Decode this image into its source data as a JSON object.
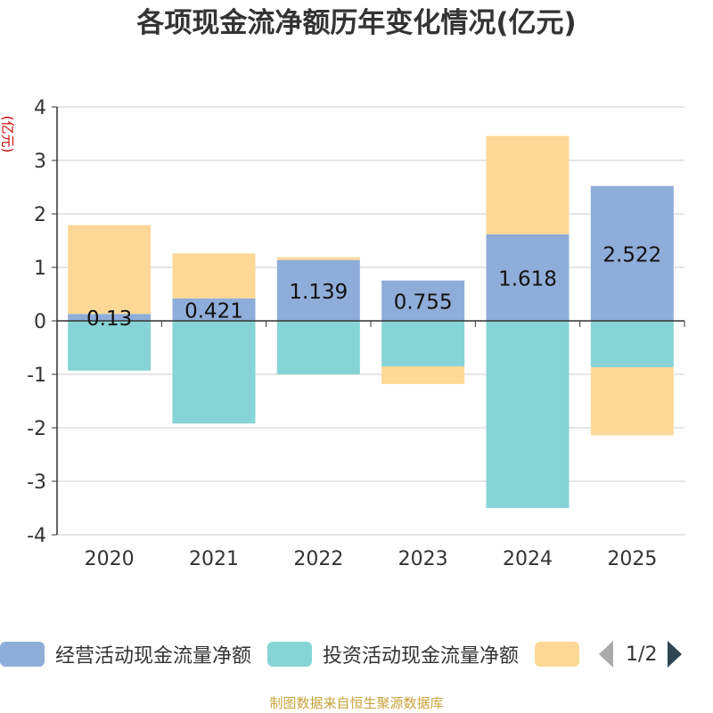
{
  "chart_data": {
    "type": "bar",
    "stacked": true,
    "title": "各项现金流净额历年变化情况(亿元)",
    "ylabel": "(亿元)",
    "ylim": [
      -4,
      4
    ],
    "yticks": [
      4,
      3,
      2,
      1,
      0,
      -1,
      -2,
      -3,
      -4
    ],
    "categories": [
      "2020",
      "2021",
      "2022",
      "2023",
      "2024",
      "2025"
    ],
    "series": [
      {
        "name": "经营活动现金流量净额",
        "color": "#8fadd9",
        "values": [
          0.13,
          0.421,
          1.139,
          0.755,
          1.618,
          2.522
        ],
        "labels": [
          "0.13",
          "0.421",
          "1.139",
          "0.755",
          "1.618",
          "2.522"
        ]
      },
      {
        "name": "投资活动现金流量净额",
        "color": "#86d4d6",
        "values": [
          -0.93,
          -1.92,
          -1.0,
          -0.85,
          -3.5,
          -0.87
        ]
      },
      {
        "name": "",
        "color": "#fdd896",
        "values": [
          1.66,
          0.84,
          0.05,
          -0.33,
          1.84,
          -1.27
        ]
      }
    ],
    "legend_page": "1/2",
    "source": "制图数据来自恒生聚源数据库"
  }
}
